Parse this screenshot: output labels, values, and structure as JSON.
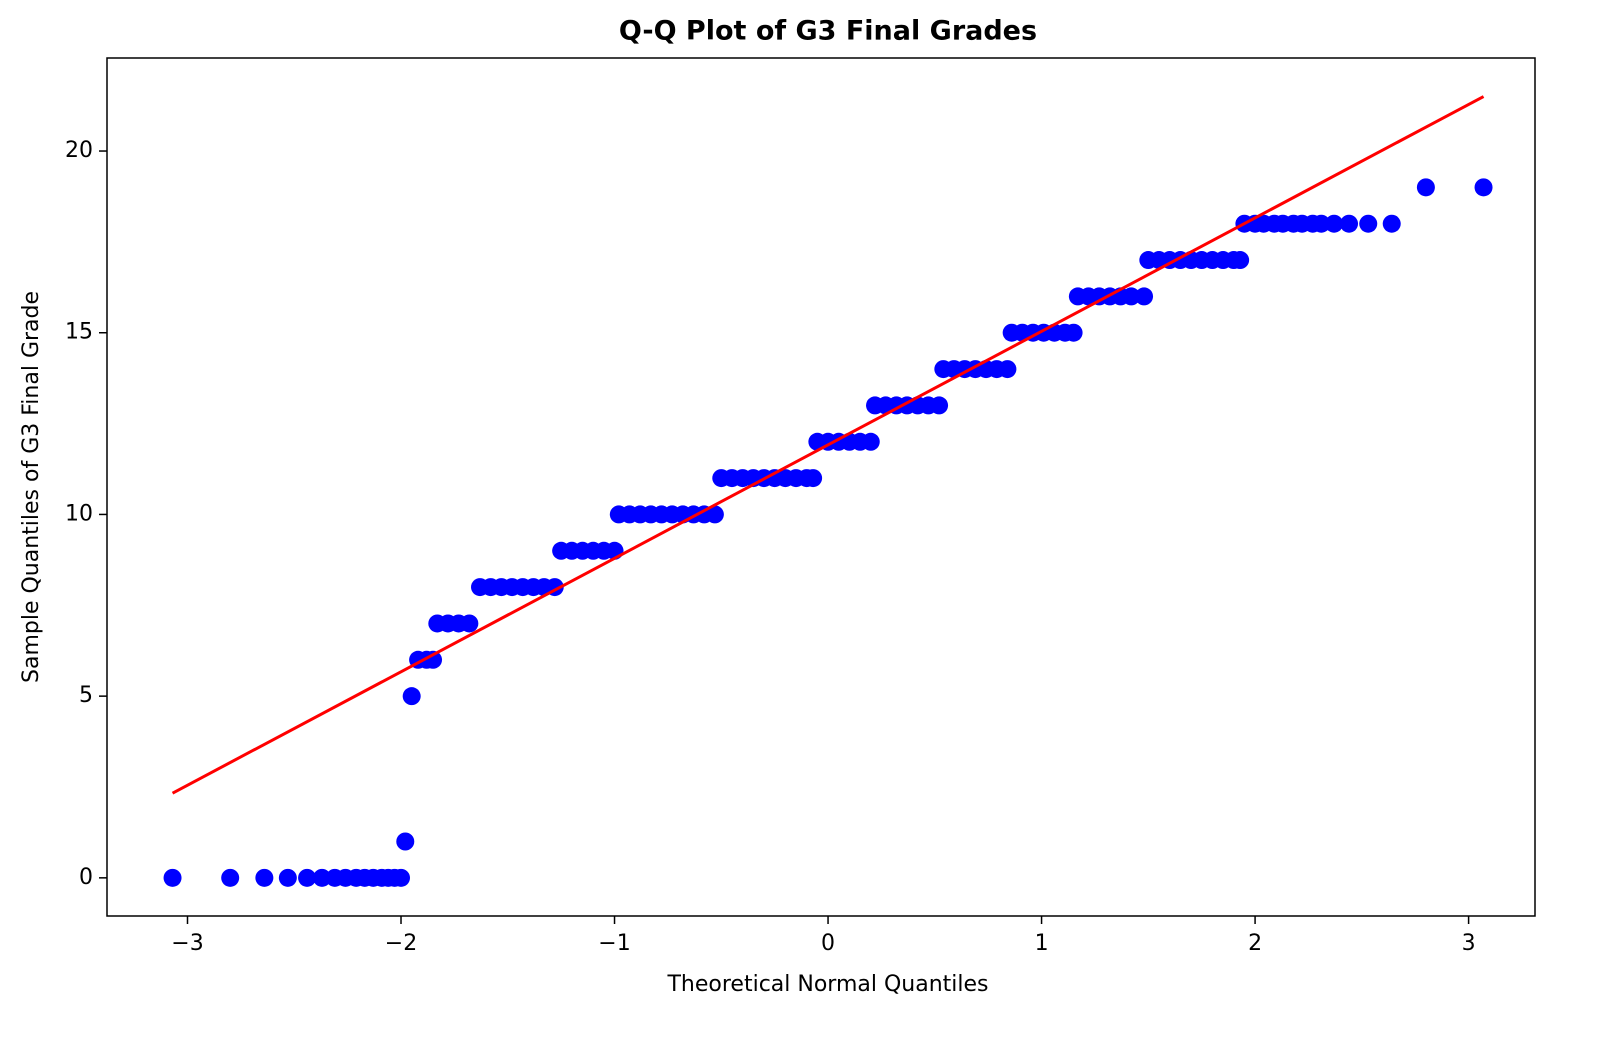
{
  "chart_data": {
    "type": "scatter",
    "title": "Q-Q Plot of G3 Final Grades",
    "xlabel": "Theoretical Normal Quantiles",
    "ylabel": "Sample Quantiles of G3 Final Grade",
    "xlim": [
      -3.377,
      3.311
    ],
    "ylim": [
      -1.05,
      22.56
    ],
    "xticks": [
      {
        "value": -3,
        "label": "−3"
      },
      {
        "value": -2,
        "label": "−2"
      },
      {
        "value": -1,
        "label": "−1"
      },
      0,
      1,
      2,
      3
    ],
    "yticks": [
      0,
      5,
      10,
      15,
      20
    ],
    "series": [
      {
        "type": "scatter",
        "color": "#0000ff",
        "x": [
          -3.07,
          -2.8,
          -2.64,
          -2.53,
          -2.44,
          -2.37,
          -2.31,
          -2.26,
          -2.21,
          -2.17,
          -2.13,
          -2.09,
          -2.06,
          -2.03,
          -2.0,
          -1.98,
          -1.95,
          -1.92,
          -1.88,
          -1.85,
          -1.83,
          -1.78,
          -1.73,
          -1.68,
          -1.63,
          -1.58,
          -1.53,
          -1.48,
          -1.43,
          -1.38,
          -1.33,
          -1.28,
          -1.25,
          -1.2,
          -1.15,
          -1.1,
          -1.05,
          -1.0,
          -0.98,
          -0.93,
          -0.88,
          -0.83,
          -0.78,
          -0.73,
          -0.68,
          -0.63,
          -0.58,
          -0.53,
          -0.5,
          -0.45,
          -0.4,
          -0.35,
          -0.3,
          -0.25,
          -0.2,
          -0.15,
          -0.1,
          -0.07,
          -0.05,
          0.0,
          0.05,
          0.1,
          0.15,
          0.2,
          0.22,
          0.27,
          0.32,
          0.37,
          0.42,
          0.47,
          0.52,
          0.54,
          0.59,
          0.64,
          0.69,
          0.74,
          0.79,
          0.84,
          0.86,
          0.91,
          0.96,
          1.01,
          1.06,
          1.11,
          1.15,
          1.17,
          1.22,
          1.27,
          1.32,
          1.37,
          1.42,
          1.48,
          1.5,
          1.55,
          1.6,
          1.65,
          1.7,
          1.75,
          1.8,
          1.85,
          1.9,
          1.93,
          1.95,
          2.0,
          2.04,
          2.09,
          2.13,
          2.18,
          2.22,
          2.27,
          2.31,
          2.37,
          2.44,
          2.53,
          2.64,
          2.8,
          3.07
        ],
        "y": [
          0,
          0,
          0,
          0,
          0,
          0,
          0,
          0,
          0,
          0,
          0,
          0,
          0,
          0,
          0,
          1,
          5,
          6,
          6,
          6,
          7,
          7,
          7,
          7,
          8,
          8,
          8,
          8,
          8,
          8,
          8,
          8,
          9,
          9,
          9,
          9,
          9,
          9,
          10,
          10,
          10,
          10,
          10,
          10,
          10,
          10,
          10,
          10,
          11,
          11,
          11,
          11,
          11,
          11,
          11,
          11,
          11,
          11,
          12,
          12,
          12,
          12,
          12,
          12,
          13,
          13,
          13,
          13,
          13,
          13,
          13,
          14,
          14,
          14,
          14,
          14,
          14,
          14,
          15,
          15,
          15,
          15,
          15,
          15,
          15,
          16,
          16,
          16,
          16,
          16,
          16,
          16,
          17,
          17,
          17,
          17,
          17,
          17,
          17,
          17,
          17,
          17,
          18,
          18,
          18,
          18,
          18,
          18,
          18,
          18,
          18,
          18,
          18,
          18,
          18,
          19,
          19
        ]
      },
      {
        "type": "line",
        "color": "#ff0000",
        "x": [
          -3.07,
          3.07
        ],
        "y": [
          2.33,
          21.5
        ]
      }
    ]
  }
}
